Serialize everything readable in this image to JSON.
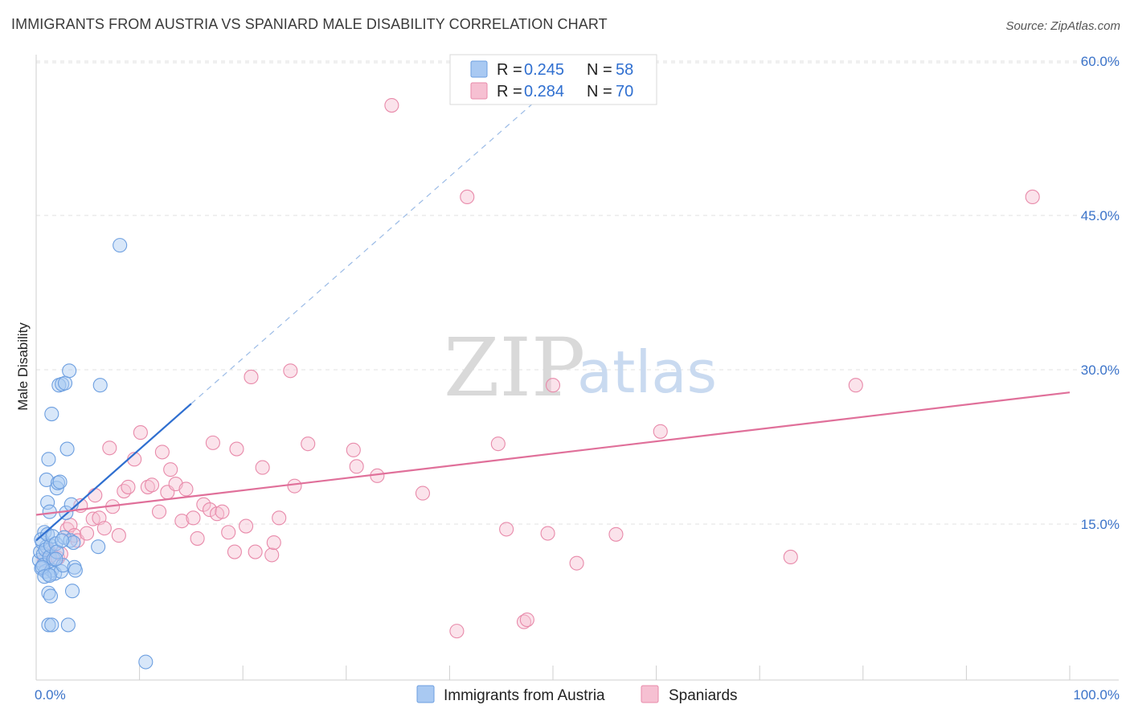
{
  "title": "IMMIGRANTS FROM AUSTRIA VS SPANIARD MALE DISABILITY CORRELATION CHART",
  "source": "Source: ZipAtlas.com",
  "watermark": {
    "zip": "ZIP",
    "atlas": "atlas"
  },
  "colors": {
    "austria_fill": "#a9c9f2",
    "austria_stroke": "#6d9fe0",
    "austria_line": "#2f6fd0",
    "spaniard_fill": "#f6c0d2",
    "spaniard_stroke": "#e88aaa",
    "spaniard_line": "#e0709a",
    "axis_tick_text": "#3b73c9",
    "grid": "#e2e2e2"
  },
  "legend": {
    "r_label": "R =",
    "n_label": "N =",
    "rows": [
      {
        "series": "austria",
        "r": "0.245",
        "n": "58"
      },
      {
        "series": "spaniard",
        "r": "0.284",
        "n": "70"
      }
    ]
  },
  "bottom_legend": [
    {
      "series": "austria",
      "label": "Immigrants from Austria"
    },
    {
      "series": "spaniard",
      "label": "Spaniards"
    }
  ],
  "chart_data": {
    "type": "scatter",
    "ylabel": "Male Disability",
    "xlabel": "",
    "xlim": [
      0,
      100
    ],
    "ylim": [
      0,
      61.5
    ],
    "x_tick_labels": [
      {
        "value": 0,
        "label": "0.0%"
      },
      {
        "value": 100,
        "label": "100.0%"
      }
    ],
    "y_tick_labels": [
      {
        "value": 15,
        "label": "15.0%"
      },
      {
        "value": 30,
        "label": "30.0%"
      },
      {
        "value": 45,
        "label": "45.0%"
      },
      {
        "value": 60,
        "label": "60.0%"
      }
    ],
    "series": [
      {
        "name": "Immigrants from Austria",
        "key": "austria",
        "r": 0.245,
        "n": 58,
        "trend": {
          "x0": 0,
          "y0": 13.4,
          "x1": 15,
          "y1": 26.7,
          "dash_to_x": 50,
          "dash_to_y": 57.6
        },
        "points": [
          [
            0.3,
            11.5
          ],
          [
            0.4,
            12.3
          ],
          [
            0.5,
            10.7
          ],
          [
            0.6,
            13.2
          ],
          [
            0.7,
            12.1
          ],
          [
            0.8,
            14.2
          ],
          [
            0.9,
            10.4
          ],
          [
            1.0,
            12.8
          ],
          [
            0.5,
            13.5
          ],
          [
            0.7,
            11.0
          ],
          [
            0.9,
            12.5
          ],
          [
            1.1,
            14.0
          ],
          [
            1.2,
            10.1
          ],
          [
            1.3,
            11.8
          ],
          [
            1.4,
            12.9
          ],
          [
            1.5,
            10.5
          ],
          [
            1.0,
            19.3
          ],
          [
            1.1,
            17.1
          ],
          [
            1.2,
            21.3
          ],
          [
            1.2,
            8.3
          ],
          [
            1.3,
            16.2
          ],
          [
            1.4,
            8.0
          ],
          [
            1.5,
            25.7
          ],
          [
            1.6,
            13.8
          ],
          [
            1.7,
            11.6
          ],
          [
            1.8,
            10.2
          ],
          [
            1.9,
            13.1
          ],
          [
            2.0,
            18.5
          ],
          [
            2.1,
            19.0
          ],
          [
            2.2,
            28.5
          ],
          [
            2.3,
            19.1
          ],
          [
            2.4,
            10.4
          ],
          [
            2.5,
            28.6
          ],
          [
            2.6,
            11.0
          ],
          [
            2.7,
            13.7
          ],
          [
            2.8,
            28.7
          ],
          [
            2.9,
            16.1
          ],
          [
            3.0,
            22.3
          ],
          [
            3.1,
            5.2
          ],
          [
            3.2,
            29.9
          ],
          [
            3.3,
            13.4
          ],
          [
            3.4,
            16.9
          ],
          [
            3.5,
            8.5
          ],
          [
            3.6,
            13.2
          ],
          [
            3.7,
            10.8
          ],
          [
            3.8,
            10.5
          ],
          [
            6.2,
            28.5
          ],
          [
            6.0,
            12.8
          ],
          [
            8.1,
            42.1
          ],
          [
            10.6,
            1.6
          ],
          [
            1.2,
            5.2
          ],
          [
            1.5,
            5.2
          ],
          [
            2.0,
            12.3
          ],
          [
            2.5,
            13.4
          ],
          [
            0.6,
            10.8
          ],
          [
            0.8,
            9.9
          ],
          [
            1.3,
            10.0
          ],
          [
            1.9,
            11.6
          ]
        ]
      },
      {
        "name": "Spaniards",
        "key": "spaniard",
        "r": 0.284,
        "n": 70,
        "trend": {
          "x0": 0,
          "y0": 15.9,
          "x1": 100,
          "y1": 27.8
        },
        "points": [
          [
            0.8,
            11.5
          ],
          [
            1.2,
            12.4
          ],
          [
            1.5,
            12.0
          ],
          [
            2.1,
            11.7
          ],
          [
            2.4,
            12.1
          ],
          [
            3.0,
            14.5
          ],
          [
            3.3,
            14.9
          ],
          [
            3.7,
            13.9
          ],
          [
            4.0,
            13.4
          ],
          [
            4.3,
            16.8
          ],
          [
            4.9,
            14.1
          ],
          [
            5.5,
            15.5
          ],
          [
            5.7,
            17.8
          ],
          [
            6.1,
            15.6
          ],
          [
            6.6,
            14.6
          ],
          [
            7.1,
            22.4
          ],
          [
            7.4,
            16.7
          ],
          [
            8.0,
            13.9
          ],
          [
            8.5,
            18.2
          ],
          [
            8.9,
            18.6
          ],
          [
            9.5,
            21.3
          ],
          [
            10.1,
            23.9
          ],
          [
            10.8,
            18.6
          ],
          [
            11.2,
            18.8
          ],
          [
            11.9,
            16.2
          ],
          [
            12.2,
            22.0
          ],
          [
            12.7,
            18.1
          ],
          [
            13.0,
            20.3
          ],
          [
            13.5,
            18.9
          ],
          [
            14.1,
            15.3
          ],
          [
            14.5,
            18.4
          ],
          [
            15.2,
            15.6
          ],
          [
            15.6,
            13.6
          ],
          [
            16.2,
            16.9
          ],
          [
            16.8,
            16.4
          ],
          [
            17.1,
            22.9
          ],
          [
            17.5,
            16.0
          ],
          [
            18.0,
            16.2
          ],
          [
            18.6,
            14.2
          ],
          [
            19.2,
            12.3
          ],
          [
            19.4,
            22.3
          ],
          [
            20.3,
            14.8
          ],
          [
            20.8,
            29.3
          ],
          [
            21.2,
            12.3
          ],
          [
            21.9,
            20.5
          ],
          [
            22.8,
            12.0
          ],
          [
            23.0,
            13.2
          ],
          [
            23.5,
            15.6
          ],
          [
            24.6,
            29.9
          ],
          [
            25.0,
            18.7
          ],
          [
            26.3,
            22.8
          ],
          [
            30.7,
            22.2
          ],
          [
            31.0,
            20.6
          ],
          [
            33.0,
            19.7
          ],
          [
            34.4,
            55.7
          ],
          [
            37.4,
            18.0
          ],
          [
            40.7,
            4.6
          ],
          [
            41.7,
            46.8
          ],
          [
            44.7,
            22.8
          ],
          [
            45.5,
            14.5
          ],
          [
            47.2,
            5.5
          ],
          [
            47.5,
            5.7
          ],
          [
            49.5,
            14.1
          ],
          [
            50.0,
            28.5
          ],
          [
            52.3,
            11.2
          ],
          [
            56.1,
            14.0
          ],
          [
            60.4,
            24.0
          ],
          [
            73.0,
            11.8
          ],
          [
            79.3,
            28.5
          ],
          [
            96.4,
            46.8
          ]
        ]
      }
    ]
  }
}
